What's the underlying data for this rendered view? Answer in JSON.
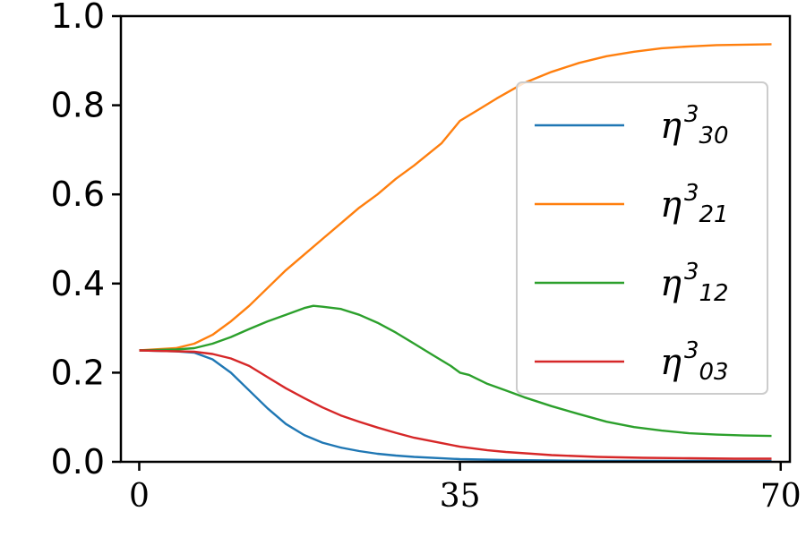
{
  "chart_data": {
    "type": "line",
    "title": "",
    "xlabel": "",
    "ylabel": "",
    "xlim": [
      -2,
      71
    ],
    "ylim": [
      0,
      1
    ],
    "xticks": [
      0,
      35,
      70
    ],
    "xtick_labels": [
      "0",
      "35",
      "70"
    ],
    "yticks": [
      0,
      0.2,
      0.4,
      0.6,
      0.8,
      1.0
    ],
    "ytick_labels": [
      "0.0",
      "0.2",
      "0.4",
      "0.6",
      "0.8",
      "1.0"
    ],
    "grid": false,
    "legend_position": "center-right",
    "series": [
      {
        "name": "η³30",
        "legend_main": "η",
        "legend_sup": "3",
        "legend_sub": "30",
        "color": "#1f77b4",
        "x": [
          0,
          4,
          6,
          8,
          10,
          12,
          14,
          16,
          18,
          20,
          22,
          24,
          26,
          28,
          30,
          35,
          40,
          45,
          50,
          55,
          60,
          65,
          69
        ],
        "y": [
          0.25,
          0.248,
          0.245,
          0.23,
          0.2,
          0.16,
          0.12,
          0.085,
          0.06,
          0.043,
          0.032,
          0.024,
          0.018,
          0.014,
          0.011,
          0.006,
          0.004,
          0.003,
          0.002,
          0.002,
          0.002,
          0.002,
          0.002
        ]
      },
      {
        "name": "η³21",
        "legend_main": "η",
        "legend_sup": "3",
        "legend_sub": "21",
        "color": "#ff7f0e",
        "x": [
          0,
          4,
          6,
          8,
          10,
          12,
          14,
          16,
          18,
          20,
          22,
          24,
          26,
          28,
          30,
          33,
          35,
          37,
          39,
          42,
          45,
          48,
          51,
          54,
          57,
          60,
          63,
          66,
          69
        ],
        "y": [
          0.25,
          0.255,
          0.265,
          0.285,
          0.315,
          0.35,
          0.39,
          0.43,
          0.465,
          0.5,
          0.535,
          0.57,
          0.6,
          0.635,
          0.665,
          0.715,
          0.765,
          0.79,
          0.815,
          0.85,
          0.875,
          0.895,
          0.91,
          0.92,
          0.928,
          0.932,
          0.935,
          0.936,
          0.937
        ]
      },
      {
        "name": "η³12",
        "legend_main": "η",
        "legend_sup": "3",
        "legend_sub": "12",
        "color": "#2ca02c",
        "x": [
          0,
          4,
          6,
          8,
          10,
          12,
          14,
          16,
          18,
          19,
          20,
          22,
          24,
          26,
          28,
          30,
          32,
          34,
          35,
          36,
          38,
          40,
          42,
          45,
          48,
          51,
          54,
          57,
          60,
          63,
          66,
          69
        ],
        "y": [
          0.25,
          0.252,
          0.255,
          0.265,
          0.28,
          0.298,
          0.315,
          0.33,
          0.345,
          0.35,
          0.348,
          0.343,
          0.33,
          0.312,
          0.29,
          0.265,
          0.24,
          0.215,
          0.2,
          0.195,
          0.175,
          0.16,
          0.145,
          0.125,
          0.107,
          0.09,
          0.078,
          0.07,
          0.064,
          0.061,
          0.059,
          0.058
        ]
      },
      {
        "name": "η³03",
        "legend_main": "η",
        "legend_sup": "3",
        "legend_sub": "03",
        "color": "#d62728",
        "x": [
          0,
          4,
          6,
          8,
          10,
          12,
          14,
          16,
          18,
          20,
          22,
          24,
          26,
          28,
          30,
          33,
          35,
          38,
          40,
          45,
          50,
          55,
          60,
          65,
          69
        ],
        "y": [
          0.25,
          0.248,
          0.247,
          0.242,
          0.232,
          0.215,
          0.19,
          0.165,
          0.143,
          0.122,
          0.104,
          0.09,
          0.077,
          0.065,
          0.054,
          0.042,
          0.034,
          0.026,
          0.022,
          0.015,
          0.011,
          0.009,
          0.008,
          0.007,
          0.007
        ]
      }
    ]
  }
}
